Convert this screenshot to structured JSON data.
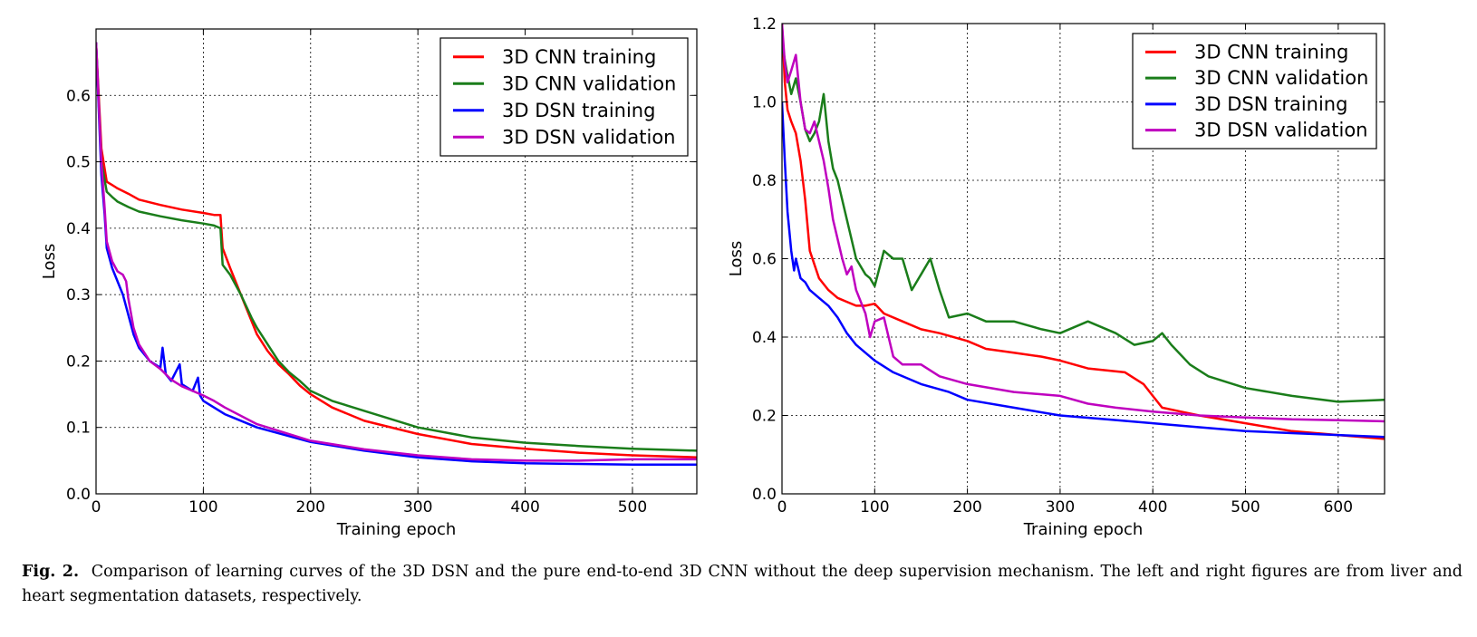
{
  "caption": {
    "label": "Fig. 2.",
    "text": "Comparison of learning curves of the 3D DSN and the pure end-to-end 3D CNN without the deep supervision mechanism. The left and right figures are from liver and heart segmentation datasets, respectively."
  },
  "colors": {
    "3D CNN training": "#ff0000",
    "3D CNN validation": "#1a7d1a",
    "3D DSN training": "#0000ff",
    "3D DSN validation": "#bf00bf"
  },
  "chart_data": [
    {
      "type": "line",
      "title": "",
      "xlabel": "Training epoch",
      "ylabel": "Loss",
      "xlim": [
        0,
        560
      ],
      "ylim": [
        0,
        0.7
      ],
      "xticks": [
        0,
        100,
        200,
        300,
        400,
        500
      ],
      "yticks": [
        0.0,
        0.1,
        0.2,
        0.3,
        0.4,
        0.5,
        0.6
      ],
      "ytick_labels": [
        "0.0",
        "0.1",
        "0.2",
        "0.3",
        "0.4",
        "0.5",
        "0.6"
      ],
      "grid": true,
      "legend": "top-right",
      "series": [
        {
          "name": "3D CNN training",
          "x": [
            0,
            5,
            10,
            15,
            20,
            30,
            40,
            60,
            80,
            100,
            110,
            116,
            118,
            125,
            135,
            145,
            150,
            160,
            170,
            180,
            190,
            200,
            220,
            250,
            300,
            350,
            400,
            450,
            500,
            560
          ],
          "y": [
            0.68,
            0.52,
            0.47,
            0.465,
            0.46,
            0.452,
            0.443,
            0.435,
            0.428,
            0.423,
            0.42,
            0.42,
            0.37,
            0.34,
            0.3,
            0.26,
            0.24,
            0.215,
            0.195,
            0.18,
            0.163,
            0.15,
            0.13,
            0.11,
            0.09,
            0.075,
            0.068,
            0.062,
            0.058,
            0.055
          ]
        },
        {
          "name": "3D CNN validation",
          "x": [
            0,
            5,
            10,
            15,
            20,
            30,
            40,
            60,
            80,
            100,
            110,
            116,
            118,
            125,
            135,
            145,
            150,
            160,
            170,
            180,
            190,
            200,
            220,
            250,
            300,
            350,
            400,
            450,
            500,
            560
          ],
          "y": [
            0.68,
            0.5,
            0.455,
            0.447,
            0.44,
            0.432,
            0.425,
            0.418,
            0.412,
            0.407,
            0.404,
            0.4,
            0.345,
            0.33,
            0.3,
            0.265,
            0.25,
            0.225,
            0.2,
            0.183,
            0.17,
            0.155,
            0.14,
            0.125,
            0.1,
            0.085,
            0.077,
            0.072,
            0.068,
            0.065
          ]
        },
        {
          "name": "3D DSN training",
          "x": [
            0,
            5,
            8,
            10,
            15,
            20,
            25,
            30,
            35,
            40,
            50,
            60,
            62,
            65,
            70,
            78,
            80,
            90,
            95,
            97,
            100,
            120,
            150,
            200,
            250,
            300,
            350,
            400,
            450,
            500,
            560
          ],
          "y": [
            0.68,
            0.48,
            0.42,
            0.37,
            0.34,
            0.32,
            0.3,
            0.27,
            0.24,
            0.22,
            0.2,
            0.19,
            0.22,
            0.18,
            0.17,
            0.195,
            0.165,
            0.155,
            0.175,
            0.148,
            0.14,
            0.12,
            0.1,
            0.078,
            0.065,
            0.055,
            0.049,
            0.046,
            0.045,
            0.044,
            0.044
          ]
        },
        {
          "name": "3D DSN validation",
          "x": [
            0,
            5,
            8,
            10,
            15,
            20,
            25,
            28,
            30,
            35,
            40,
            50,
            60,
            70,
            80,
            90,
            100,
            110,
            120,
            150,
            200,
            250,
            300,
            350,
            400,
            450,
            500,
            560
          ],
          "y": [
            0.68,
            0.5,
            0.43,
            0.38,
            0.35,
            0.335,
            0.33,
            0.32,
            0.295,
            0.25,
            0.225,
            0.2,
            0.188,
            0.172,
            0.162,
            0.155,
            0.148,
            0.14,
            0.13,
            0.105,
            0.08,
            0.067,
            0.058,
            0.052,
            0.05,
            0.05,
            0.052,
            0.052
          ]
        }
      ]
    },
    {
      "type": "line",
      "title": "",
      "xlabel": "Training epoch",
      "ylabel": "Loss",
      "xlim": [
        0,
        650
      ],
      "ylim": [
        0,
        1.2
      ],
      "xticks": [
        0,
        100,
        200,
        300,
        400,
        500,
        600
      ],
      "yticks": [
        0.0,
        0.2,
        0.4,
        0.6,
        0.8,
        1.0,
        1.2
      ],
      "ytick_labels": [
        "0.0",
        "0.2",
        "0.4",
        "0.6",
        "0.8",
        "1.0",
        "1.2"
      ],
      "grid": true,
      "legend": "top-right",
      "series": [
        {
          "name": "3D CNN training",
          "x": [
            0,
            3,
            6,
            10,
            15,
            20,
            25,
            30,
            40,
            50,
            60,
            70,
            80,
            90,
            100,
            110,
            130,
            150,
            170,
            200,
            220,
            250,
            280,
            300,
            330,
            370,
            390,
            400,
            410,
            430,
            450,
            500,
            550,
            600,
            650
          ],
          "y": [
            1.2,
            1.05,
            0.98,
            0.95,
            0.92,
            0.85,
            0.75,
            0.62,
            0.55,
            0.52,
            0.5,
            0.49,
            0.48,
            0.48,
            0.485,
            0.46,
            0.44,
            0.42,
            0.41,
            0.39,
            0.37,
            0.36,
            0.35,
            0.34,
            0.32,
            0.31,
            0.28,
            0.25,
            0.22,
            0.21,
            0.2,
            0.18,
            0.16,
            0.15,
            0.14
          ]
        },
        {
          "name": "3D CNN validation",
          "x": [
            0,
            5,
            10,
            15,
            20,
            25,
            30,
            35,
            40,
            45,
            50,
            55,
            60,
            70,
            80,
            90,
            95,
            100,
            110,
            120,
            130,
            140,
            150,
            160,
            170,
            180,
            200,
            220,
            250,
            280,
            300,
            330,
            360,
            380,
            400,
            410,
            420,
            440,
            460,
            500,
            550,
            600,
            650
          ],
          "y": [
            1.15,
            1.08,
            1.02,
            1.06,
            1.0,
            0.93,
            0.9,
            0.92,
            0.95,
            1.02,
            0.9,
            0.83,
            0.8,
            0.7,
            0.6,
            0.56,
            0.55,
            0.53,
            0.62,
            0.6,
            0.6,
            0.52,
            0.56,
            0.6,
            0.52,
            0.45,
            0.46,
            0.44,
            0.44,
            0.42,
            0.41,
            0.44,
            0.41,
            0.38,
            0.39,
            0.41,
            0.38,
            0.33,
            0.3,
            0.27,
            0.25,
            0.235,
            0.24
          ]
        },
        {
          "name": "3D DSN training",
          "x": [
            0,
            3,
            6,
            10,
            13,
            15,
            20,
            25,
            30,
            40,
            50,
            60,
            70,
            80,
            90,
            100,
            120,
            150,
            180,
            200,
            250,
            300,
            350,
            400,
            450,
            500,
            550,
            600,
            650
          ],
          "y": [
            1.0,
            0.85,
            0.72,
            0.62,
            0.57,
            0.6,
            0.55,
            0.54,
            0.52,
            0.5,
            0.48,
            0.45,
            0.41,
            0.38,
            0.36,
            0.34,
            0.31,
            0.28,
            0.26,
            0.24,
            0.22,
            0.2,
            0.19,
            0.18,
            0.17,
            0.16,
            0.155,
            0.15,
            0.145
          ]
        },
        {
          "name": "3D DSN validation",
          "x": [
            0,
            3,
            6,
            10,
            15,
            20,
            25,
            30,
            35,
            40,
            45,
            50,
            55,
            60,
            65,
            70,
            75,
            80,
            90,
            95,
            100,
            110,
            120,
            130,
            150,
            170,
            200,
            250,
            300,
            330,
            360,
            400,
            450,
            500,
            550,
            600,
            650
          ],
          "y": [
            1.2,
            1.1,
            1.05,
            1.08,
            1.12,
            1.0,
            0.93,
            0.92,
            0.95,
            0.9,
            0.85,
            0.78,
            0.7,
            0.65,
            0.6,
            0.56,
            0.58,
            0.52,
            0.46,
            0.4,
            0.44,
            0.45,
            0.35,
            0.33,
            0.33,
            0.3,
            0.28,
            0.26,
            0.25,
            0.23,
            0.22,
            0.21,
            0.2,
            0.195,
            0.19,
            0.188,
            0.185
          ]
        }
      ]
    }
  ]
}
